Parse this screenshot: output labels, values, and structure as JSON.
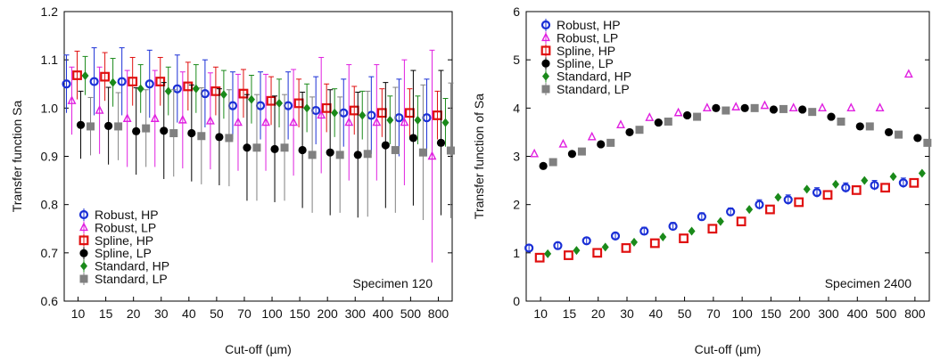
{
  "chart_data": [
    {
      "type": "scatter",
      "xlabel": "Cut-off (µm)",
      "ylabel": "Transfer function Sa",
      "annotation": "Specimen 120",
      "ylim": [
        0.6,
        1.2
      ],
      "yticks": [
        "0.6",
        "0.7",
        "0.8",
        "0.9",
        "1.0",
        "1.1",
        "1.2"
      ],
      "categories": [
        "10",
        "15",
        "20",
        "30",
        "40",
        "50",
        "70",
        "100",
        "150",
        "200",
        "300",
        "400",
        "500",
        "800"
      ],
      "legend_position": "bottom-left",
      "series": [
        {
          "name": "Robust, HP",
          "marker": "circle-open",
          "color": "#1a2fd6",
          "values": [
            1.05,
            1.055,
            1.055,
            1.05,
            1.04,
            1.03,
            1.005,
            1.005,
            1.005,
            0.995,
            0.99,
            0.985,
            0.98,
            0.98
          ],
          "err": [
            0.06,
            0.07,
            0.07,
            0.07,
            0.07,
            0.07,
            0.07,
            0.07,
            0.07,
            0.07,
            0.07,
            0.08,
            0.08,
            0.08
          ]
        },
        {
          "name": "Robust, LP",
          "marker": "triangle-open",
          "color": "#e020e0",
          "values": [
            1.015,
            0.995,
            0.978,
            0.978,
            0.975,
            0.973,
            0.97,
            0.97,
            0.97,
            0.985,
            0.97,
            0.97,
            0.97,
            0.9
          ],
          "err": [
            0.07,
            0.09,
            0.1,
            0.1,
            0.1,
            0.1,
            0.1,
            0.1,
            0.11,
            0.12,
            0.12,
            0.12,
            0.13,
            0.22
          ]
        },
        {
          "name": "Spline, HP",
          "marker": "square-open",
          "color": "#e01010",
          "values": [
            1.068,
            1.065,
            1.055,
            1.055,
            1.045,
            1.035,
            1.03,
            1.015,
            1.01,
            1.0,
            0.995,
            0.99,
            0.99,
            0.985
          ],
          "err": [
            0.05,
            0.05,
            0.05,
            0.05,
            0.05,
            0.05,
            0.05,
            0.05,
            0.05,
            0.05,
            0.05,
            0.05,
            0.05,
            0.05
          ]
        },
        {
          "name": "Spline, LP",
          "marker": "circle-filled",
          "color": "#000000",
          "values": [
            0.965,
            0.963,
            0.952,
            0.953,
            0.948,
            0.94,
            0.918,
            0.915,
            0.913,
            0.908,
            0.903,
            0.923,
            0.938,
            0.928
          ],
          "err": [
            0.07,
            0.08,
            0.09,
            0.1,
            0.1,
            0.1,
            0.11,
            0.11,
            0.12,
            0.13,
            0.13,
            0.13,
            0.14,
            0.15
          ]
        },
        {
          "name": "Standard, HP",
          "marker": "diamond-filled",
          "color": "#1a8a1a",
          "values": [
            1.067,
            1.053,
            1.04,
            1.035,
            1.04,
            1.028,
            1.018,
            1.01,
            1.0,
            0.99,
            0.985,
            0.975,
            0.975,
            0.97
          ],
          "err": [
            0.04,
            0.05,
            0.05,
            0.05,
            0.05,
            0.05,
            0.05,
            0.05,
            0.05,
            0.05,
            0.05,
            0.05,
            0.05,
            0.05
          ]
        },
        {
          "name": "Standard, LP",
          "marker": "square-filled",
          "color": "#808080",
          "values": [
            0.962,
            0.962,
            0.958,
            0.948,
            0.942,
            0.938,
            0.918,
            0.918,
            0.903,
            0.903,
            0.905,
            0.913,
            0.908,
            0.912
          ],
          "err": [
            0.06,
            0.07,
            0.08,
            0.09,
            0.1,
            0.1,
            0.11,
            0.11,
            0.12,
            0.12,
            0.13,
            0.13,
            0.14,
            0.14
          ]
        }
      ]
    },
    {
      "type": "scatter",
      "xlabel": "Cut-off (µm)",
      "ylabel": "Transfer function of Sa",
      "annotation": "Specimen 2400",
      "ylim": [
        0,
        6
      ],
      "yticks": [
        "0",
        "1",
        "2",
        "3",
        "4",
        "5",
        "6"
      ],
      "categories": [
        "10",
        "15",
        "20",
        "30",
        "40",
        "50",
        "70",
        "100",
        "150",
        "200",
        "300",
        "400",
        "500",
        "800"
      ],
      "legend_position": "top-left",
      "series": [
        {
          "name": "Robust, HP",
          "marker": "circle-open",
          "color": "#1a2fd6",
          "values": [
            1.1,
            1.15,
            1.25,
            1.35,
            1.45,
            1.55,
            1.75,
            1.85,
            2.0,
            2.1,
            2.25,
            2.35,
            2.4,
            2.45
          ],
          "err": [
            0.06,
            0.06,
            0.06,
            0.06,
            0.08,
            0.08,
            0.08,
            0.08,
            0.1,
            0.1,
            0.1,
            0.1,
            0.1,
            0.1
          ]
        },
        {
          "name": "Robust, LP",
          "marker": "triangle-open",
          "color": "#e020e0",
          "values": [
            3.05,
            3.25,
            3.4,
            3.65,
            3.8,
            3.9,
            4.0,
            4.02,
            4.05,
            4.0,
            4.0,
            4.0,
            4.0,
            4.7
          ]
        },
        {
          "name": "Spline, HP",
          "marker": "square-open",
          "color": "#e01010",
          "values": [
            0.9,
            0.95,
            1.0,
            1.1,
            1.2,
            1.3,
            1.5,
            1.65,
            1.9,
            2.05,
            2.2,
            2.3,
            2.35,
            2.45
          ]
        },
        {
          "name": "Spline, LP",
          "marker": "circle-filled",
          "color": "#000000",
          "values": [
            2.8,
            3.05,
            3.25,
            3.5,
            3.7,
            3.85,
            4.0,
            4.0,
            3.97,
            3.97,
            3.82,
            3.62,
            3.5,
            3.38
          ]
        },
        {
          "name": "Standard, HP",
          "marker": "diamond-filled",
          "color": "#1a8a1a",
          "values": [
            0.98,
            1.05,
            1.12,
            1.22,
            1.33,
            1.45,
            1.65,
            1.9,
            2.15,
            2.32,
            2.42,
            2.5,
            2.58,
            2.65
          ]
        },
        {
          "name": "Standard, LP",
          "marker": "square-filled",
          "color": "#808080",
          "values": [
            2.88,
            3.1,
            3.28,
            3.55,
            3.72,
            3.82,
            3.95,
            4.0,
            3.98,
            3.92,
            3.72,
            3.62,
            3.45,
            3.28
          ]
        }
      ]
    }
  ]
}
